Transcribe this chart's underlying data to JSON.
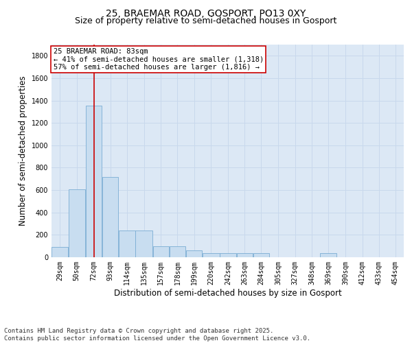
{
  "title_line1": "25, BRAEMAR ROAD, GOSPORT, PO13 0XY",
  "title_line2": "Size of property relative to semi-detached houses in Gosport",
  "xlabel": "Distribution of semi-detached houses by size in Gosport",
  "ylabel": "Number of semi-detached properties",
  "bin_labels": [
    "29sqm",
    "50sqm",
    "72sqm",
    "93sqm",
    "114sqm",
    "135sqm",
    "157sqm",
    "178sqm",
    "199sqm",
    "220sqm",
    "242sqm",
    "263sqm",
    "284sqm",
    "305sqm",
    "327sqm",
    "348sqm",
    "369sqm",
    "390sqm",
    "412sqm",
    "433sqm",
    "454sqm"
  ],
  "bar_heights": [
    90,
    605,
    1355,
    720,
    240,
    240,
    100,
    100,
    60,
    35,
    35,
    35,
    35,
    0,
    0,
    0,
    35,
    0,
    0,
    0,
    0
  ],
  "bin_edges": [
    29,
    50,
    72,
    93,
    114,
    135,
    157,
    178,
    199,
    220,
    242,
    263,
    284,
    305,
    327,
    348,
    369,
    390,
    412,
    433,
    454,
    475
  ],
  "bar_facecolor": "#c8ddf0",
  "bar_edgecolor": "#7aadd4",
  "redline_x": 83,
  "annotation_title": "25 BRAEMAR ROAD: 83sqm",
  "annotation_line1": "← 41% of semi-detached houses are smaller (1,318)",
  "annotation_line2": "57% of semi-detached houses are larger (1,816) →",
  "annotation_box_facecolor": "#ffffff",
  "annotation_box_edgecolor": "#cc0000",
  "redline_color": "#cc0000",
  "ylim": [
    0,
    1900
  ],
  "yticks": [
    0,
    200,
    400,
    600,
    800,
    1000,
    1200,
    1400,
    1600,
    1800
  ],
  "grid_color": "#c8d8ec",
  "bg_color": "#dce8f5",
  "footer_line1": "Contains HM Land Registry data © Crown copyright and database right 2025.",
  "footer_line2": "Contains public sector information licensed under the Open Government Licence v3.0.",
  "title_fontsize": 10,
  "subtitle_fontsize": 9,
  "axis_label_fontsize": 8.5,
  "tick_fontsize": 7,
  "annotation_fontsize": 7.5,
  "footer_fontsize": 6.5
}
